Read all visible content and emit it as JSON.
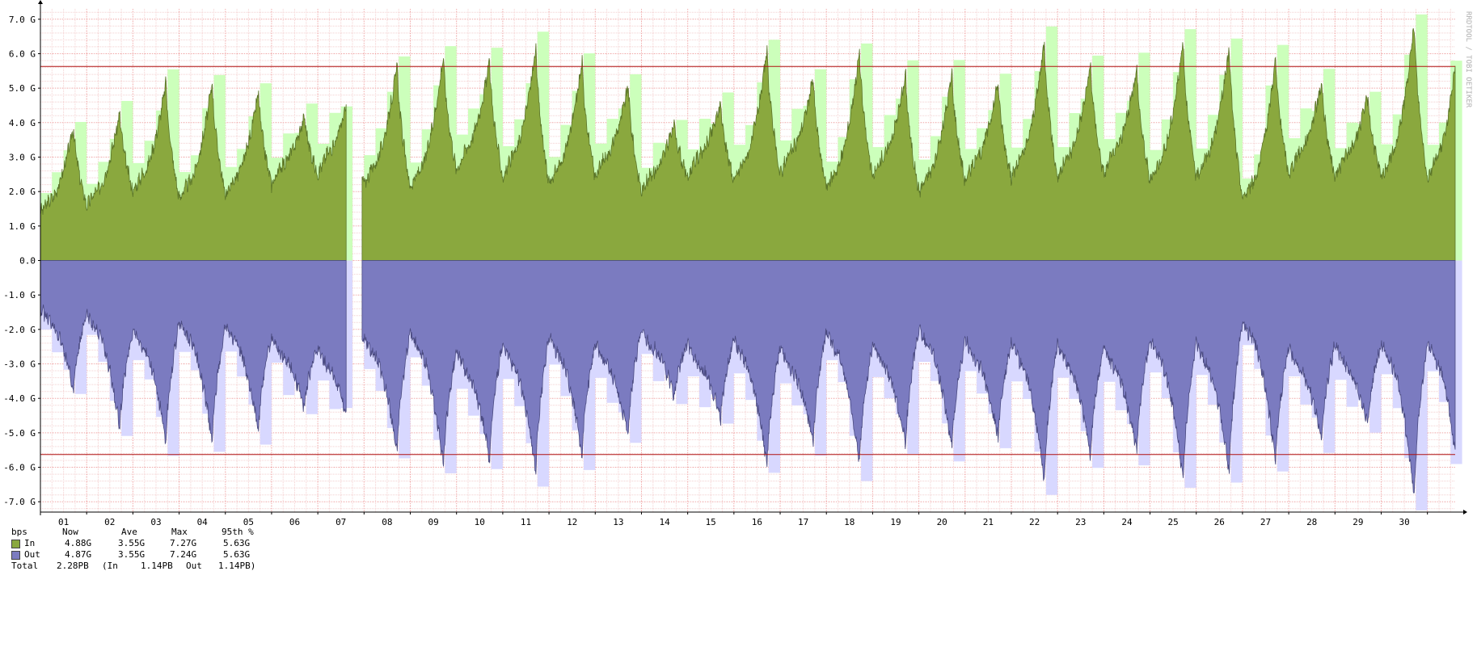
{
  "chart_data": {
    "type": "area",
    "credit": "RRDTOOL / TOBI OETIKER",
    "y_ticks": [
      "7.0 G",
      "6.0 G",
      "5.0 G",
      "4.0 G",
      "3.0 G",
      "2.0 G",
      "1.0 G",
      "0.0",
      "-1.0 G",
      "-2.0 G",
      "-3.0 G",
      "-4.0 G",
      "-5.0 G",
      "-6.0 G",
      "-7.0 G"
    ],
    "ylim": [
      -7.3,
      7.3
    ],
    "x_ticks": [
      "01",
      "02",
      "03",
      "04",
      "05",
      "06",
      "07",
      "08",
      "09",
      "10",
      "11",
      "12",
      "13",
      "14",
      "15",
      "16",
      "17",
      "18",
      "19",
      "20",
      "21",
      "22",
      "23",
      "24",
      "25",
      "26",
      "27",
      "28",
      "29",
      "30"
    ],
    "days": 30.6,
    "gap_day": [
      6.62,
      6.95
    ],
    "percentile_line": 5.63,
    "daily_peak_in": [
      3.9,
      4.3,
      5.2,
      5.2,
      4.9,
      4.2,
      5.1,
      5.7,
      6.0,
      5.8,
      6.2,
      5.8,
      5.1,
      4.0,
      4.6,
      6.1,
      5.3,
      6.1,
      5.4,
      5.5,
      5.2,
      6.4,
      5.7,
      5.6,
      6.4,
      6.2,
      5.9,
      5.2,
      4.8,
      6.9
    ],
    "daily_peak_out": [
      3.8,
      4.9,
      5.3,
      5.3,
      5.0,
      4.3,
      5.0,
      5.6,
      6.0,
      5.8,
      6.2,
      5.7,
      5.1,
      4.0,
      4.6,
      6.0,
      5.3,
      6.0,
      5.4,
      5.5,
      5.2,
      6.4,
      5.7,
      5.6,
      6.4,
      6.2,
      5.9,
      5.2,
      4.8,
      6.9
    ],
    "daily_trough": [
      1.4,
      1.6,
      2.0,
      1.8,
      1.9,
      2.2,
      2.5,
      2.2,
      2.1,
      2.6,
      2.4,
      2.2,
      2.4,
      2.0,
      2.4,
      2.3,
      2.5,
      2.1,
      2.4,
      2.0,
      2.3,
      2.4,
      2.4,
      2.5,
      2.3,
      2.4,
      1.8,
      2.5,
      2.4,
      2.4
    ],
    "series": [
      {
        "name": "In",
        "color": "#8aa83e",
        "light": "#ccffbb"
      },
      {
        "name": "Out",
        "color": "#7b7bc0",
        "light": "#d8d8ff"
      }
    ],
    "legend": {
      "header": {
        "unit": "bps",
        "now": "Now",
        "ave": "Ave",
        "max": "Max",
        "p95": "95th %"
      },
      "in": {
        "label": "In",
        "now": "4.88G",
        "ave": "3.55G",
        "max": "7.27G",
        "p95": "5.63G"
      },
      "out": {
        "label": "Out",
        "now": "4.87G",
        "ave": "3.55G",
        "max": "7.24G",
        "p95": "5.63G"
      },
      "total": {
        "label": "Total",
        "value": "2.28PB",
        "in_label": "(In",
        "in": "1.14PB",
        "out_label": "Out",
        "out": "1.14PB)"
      }
    }
  }
}
